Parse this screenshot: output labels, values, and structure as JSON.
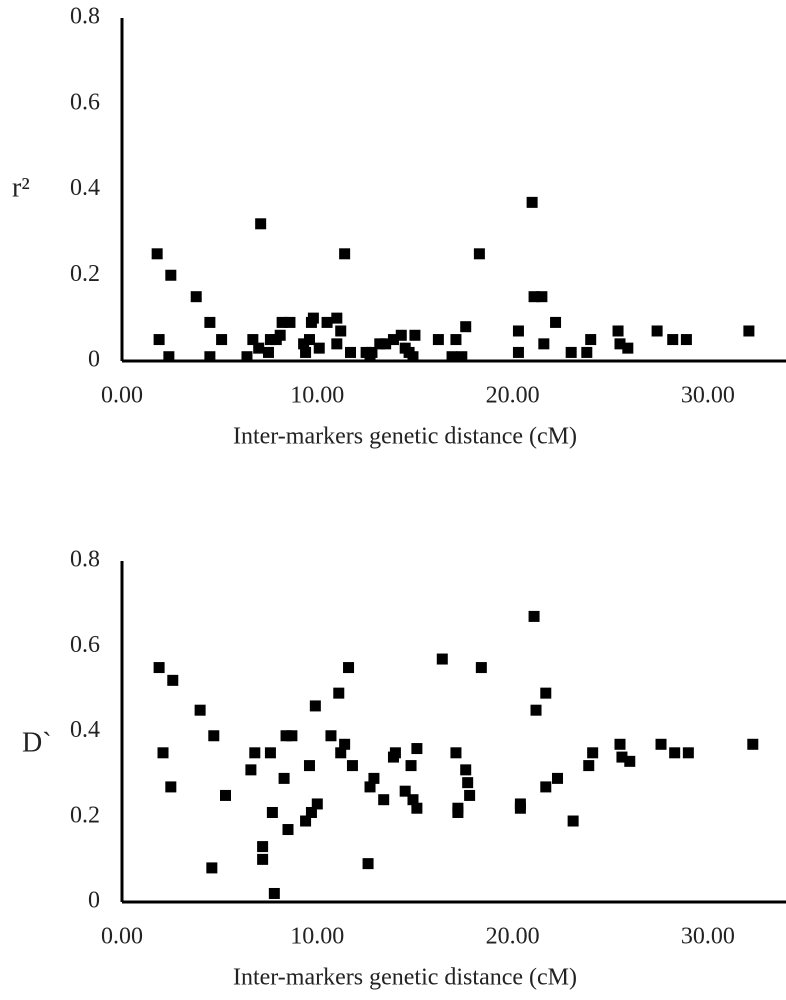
{
  "chart_data": [
    {
      "type": "scatter",
      "ylabel": "r²",
      "xlabel": "Inter-markers genetic distance (cM)",
      "color": "#000000",
      "x": [
        1.8,
        1.9,
        2.4,
        2.5,
        3.8,
        4.5,
        4.5,
        5.1,
        6.4,
        6.7,
        7.1,
        7.0,
        7.5,
        7.6,
        7.9,
        8.1,
        8.2,
        8.6,
        9.3,
        9.4,
        9.6,
        9.7,
        9.8,
        10.1,
        10.5,
        11.0,
        11.0,
        11.2,
        11.4,
        11.7,
        12.5,
        12.7,
        12.8,
        13.2,
        13.5,
        13.9,
        14.3,
        14.5,
        14.7,
        14.9,
        15.0,
        16.2,
        16.9,
        17.1,
        17.4,
        17.6,
        18.3,
        20.3,
        20.3,
        21.0,
        21.1,
        21.5,
        21.6,
        22.2,
        23.0,
        23.8,
        24.0,
        25.4,
        25.5,
        25.9,
        27.4,
        28.2,
        28.9,
        32.1
      ],
      "values": [
        0.25,
        0.05,
        0.01,
        0.2,
        0.15,
        0.01,
        0.09,
        0.05,
        0.01,
        0.05,
        0.32,
        0.03,
        0.02,
        0.05,
        0.05,
        0.06,
        0.09,
        0.09,
        0.04,
        0.02,
        0.05,
        0.09,
        0.1,
        0.03,
        0.09,
        0.1,
        0.04,
        0.07,
        0.25,
        0.02,
        0.02,
        0.01,
        0.02,
        0.04,
        0.04,
        0.05,
        0.06,
        0.03,
        0.02,
        0.01,
        0.06,
        0.05,
        0.01,
        0.05,
        0.01,
        0.08,
        0.25,
        0.07,
        0.02,
        0.37,
        0.15,
        0.15,
        0.04,
        0.09,
        0.02,
        0.02,
        0.05,
        0.07,
        0.04,
        0.03,
        0.07,
        0.05,
        0.05,
        0.07
      ],
      "xlim": [
        0,
        34
      ],
      "ylim": [
        0,
        0.8
      ],
      "xticks": [
        {
          "value": 0,
          "label": "0.00"
        },
        {
          "value": 10,
          "label": "10.00"
        },
        {
          "value": 20,
          "label": "20.00"
        },
        {
          "value": 30,
          "label": "30.00"
        }
      ],
      "yticks": [
        0,
        0.2,
        0.4,
        0.6,
        0.8
      ]
    },
    {
      "type": "scatter",
      "ylabel": "D`",
      "xlabel": "Inter-markers genetic distance (cM)",
      "color": "#000000",
      "x": [
        1.9,
        2.1,
        2.6,
        2.5,
        4.0,
        4.6,
        4.7,
        5.3,
        6.6,
        6.8,
        7.2,
        7.2,
        7.6,
        7.7,
        7.8,
        8.3,
        8.4,
        8.5,
        8.7,
        9.4,
        9.6,
        9.7,
        9.9,
        10.0,
        10.7,
        11.1,
        11.2,
        11.4,
        11.6,
        11.8,
        12.6,
        12.7,
        12.9,
        13.4,
        13.9,
        14.0,
        14.5,
        14.8,
        14.9,
        15.1,
        15.1,
        16.4,
        17.1,
        17.2,
        17.2,
        17.6,
        17.7,
        17.8,
        18.4,
        20.4,
        20.4,
        21.1,
        21.2,
        21.7,
        21.7,
        22.3,
        23.1,
        23.9,
        24.1,
        25.5,
        25.6,
        26.0,
        27.6,
        28.3,
        29.0,
        32.3
      ],
      "values": [
        0.55,
        0.35,
        0.52,
        0.27,
        0.45,
        0.08,
        0.39,
        0.25,
        0.31,
        0.35,
        0.13,
        0.1,
        0.35,
        0.21,
        0.02,
        0.29,
        0.39,
        0.17,
        0.39,
        0.19,
        0.32,
        0.21,
        0.46,
        0.23,
        0.39,
        0.49,
        0.35,
        0.37,
        0.55,
        0.32,
        0.09,
        0.27,
        0.29,
        0.24,
        0.34,
        0.35,
        0.26,
        0.32,
        0.24,
        0.22,
        0.36,
        0.57,
        0.35,
        0.22,
        0.21,
        0.31,
        0.28,
        0.25,
        0.55,
        0.22,
        0.23,
        0.67,
        0.45,
        0.27,
        0.49,
        0.29,
        0.19,
        0.32,
        0.35,
        0.37,
        0.34,
        0.33,
        0.37,
        0.35,
        0.35,
        0.37
      ],
      "xlim": [
        0,
        34
      ],
      "ylim": [
        0,
        0.8
      ],
      "xticks": [
        {
          "value": 0,
          "label": "0.00"
        },
        {
          "value": 10,
          "label": "10.00"
        },
        {
          "value": 20,
          "label": "20.00"
        },
        {
          "value": 30,
          "label": "30.00"
        }
      ],
      "yticks": [
        0,
        0.2,
        0.4,
        0.6,
        0.8
      ]
    }
  ]
}
